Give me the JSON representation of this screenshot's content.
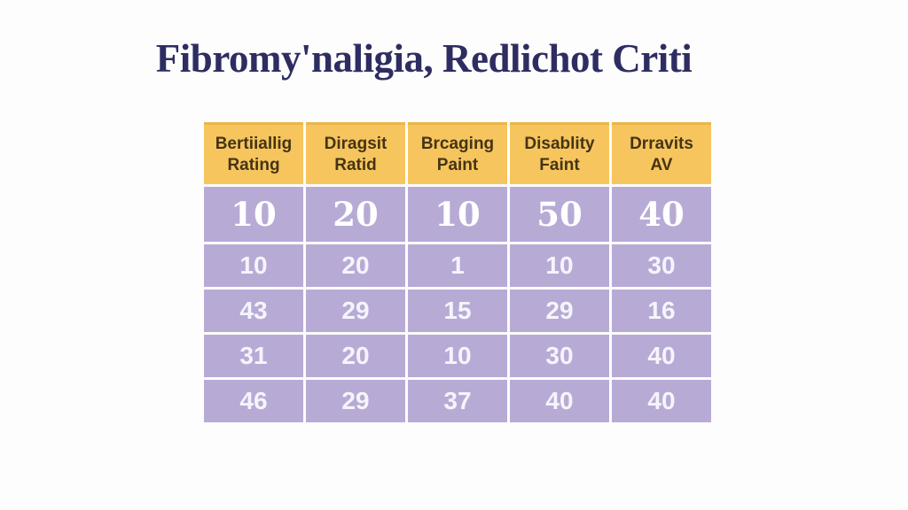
{
  "colors": {
    "page-bg": "#fdfdfd",
    "title-color": "#2e2d62",
    "header-bg": "#f6c55e",
    "header-top-border": "#eab648",
    "header-text": "#453414",
    "cell-bg": "#b7abd6",
    "cell-text": "#ffffff"
  },
  "title": {
    "text": "Fibromy'naligia, Redlichot Criti"
  },
  "table": {
    "columns": [
      {
        "line1": "Bertiiallig",
        "line2": "Rating"
      },
      {
        "line1": "Diragsit",
        "line2": "Ratid"
      },
      {
        "line1": "Brcaging",
        "line2": "Paint"
      },
      {
        "line1": "Disablity",
        "line2": "Faint"
      },
      {
        "line1": "Drravits",
        "line2": "AV"
      }
    ],
    "rows": [
      {
        "values": [
          "10",
          "20",
          "10",
          "50",
          "40"
        ]
      },
      {
        "values": [
          "10",
          "20",
          "1",
          "10",
          "30"
        ]
      },
      {
        "values": [
          "43",
          "29",
          "15",
          "29",
          "16"
        ]
      },
      {
        "values": [
          "31",
          "20",
          "10",
          "30",
          "40"
        ]
      },
      {
        "values": [
          "46",
          "29",
          "37",
          "40",
          "40"
        ]
      }
    ]
  },
  "chart_data": {
    "type": "table",
    "title": "Fibromy'naligia, Redlichot Criti",
    "columns": [
      "Bertiiallig Rating",
      "Diragsit Ratid",
      "Brcaging Paint",
      "Disablity Faint",
      "Drravits AV"
    ],
    "rows": [
      [
        10,
        20,
        10,
        50,
        40
      ],
      [
        10,
        20,
        1,
        10,
        30
      ],
      [
        43,
        29,
        15,
        29,
        16
      ],
      [
        31,
        20,
        10,
        30,
        40
      ],
      [
        46,
        29,
        37,
        40,
        40
      ]
    ],
    "layout": {
      "header_bg": "#f6c55e",
      "body_bg": "#b7abd6",
      "grid": "white 3px separators",
      "legend": "none"
    }
  }
}
